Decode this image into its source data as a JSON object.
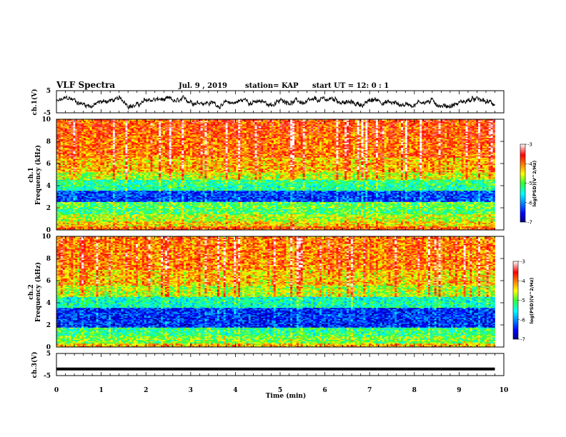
{
  "header": {
    "title": "VLF Spectra",
    "date": "Jul. 9 , 2019",
    "station": "station= KAP",
    "start_ut": "start UT = 12: 0 : 1"
  },
  "chart_data": [
    {
      "type": "line",
      "panel": "ch1-waveform",
      "ylabel": "ch.1(V)",
      "ylim": [
        -5,
        5
      ],
      "y_ticks": [
        "5",
        "-5"
      ],
      "xlim": [
        0,
        10
      ],
      "description_of_trace": "noisy black waveform fluctuating roughly between -3 and +2.5 V",
      "data_end_min": 9.8
    },
    {
      "type": "heatmap",
      "panel": "ch1-spectrogram",
      "ylabel": "ch.1",
      "ylabel2": "Frequency (kHz)",
      "ylim": [
        0,
        10
      ],
      "y_ticks": [
        "0",
        "2",
        "4",
        "6",
        "8",
        "10"
      ],
      "xlim": [
        0,
        10
      ],
      "data_end_min": 9.8,
      "band_levels": [
        {
          "f_kHz": [
            0,
            0.3
          ],
          "level": -3.9
        },
        {
          "f_kHz": [
            0.3,
            0.8
          ],
          "level": -4.4
        },
        {
          "f_kHz": [
            0.8,
            1.4
          ],
          "level": -4.7
        },
        {
          "f_kHz": [
            1.4,
            2.0
          ],
          "level": -5.1
        },
        {
          "f_kHz": [
            2.0,
            2.6
          ],
          "level": -5.0
        },
        {
          "f_kHz": [
            2.6,
            3.5
          ],
          "level": -6.3
        },
        {
          "f_kHz": [
            3.5,
            4.0
          ],
          "level": -5.3
        },
        {
          "f_kHz": [
            4.0,
            4.6
          ],
          "level": -5.2
        },
        {
          "f_kHz": [
            4.6,
            5.2
          ],
          "level": -4.6
        },
        {
          "f_kHz": [
            5.2,
            6.5
          ],
          "level": -4.2
        },
        {
          "f_kHz": [
            6.5,
            8.5
          ],
          "level": -3.9
        },
        {
          "f_kHz": [
            8.5,
            10
          ],
          "level": -3.8
        }
      ],
      "colorbar": {
        "label": "log(PSD)(V^2/Hz)",
        "range": [
          -7,
          -3
        ],
        "ticks": [
          "-3",
          "-4",
          "-5",
          "-6",
          "-7"
        ]
      }
    },
    {
      "type": "heatmap",
      "panel": "ch2-spectrogram",
      "ylabel": "ch.2",
      "ylabel2": "Frequency (kHz)",
      "ylim": [
        0,
        10
      ],
      "y_ticks": [
        "0",
        "2",
        "4",
        "6",
        "8",
        "10"
      ],
      "xlim": [
        0,
        10
      ],
      "data_end_min": 9.8,
      "band_levels": [
        {
          "f_kHz": [
            0,
            0.3
          ],
          "level": -4.3
        },
        {
          "f_kHz": [
            0.3,
            1.0
          ],
          "level": -4.9
        },
        {
          "f_kHz": [
            1.0,
            1.8
          ],
          "level": -5.2
        },
        {
          "f_kHz": [
            1.8,
            3.5
          ],
          "level": -6.4
        },
        {
          "f_kHz": [
            3.5,
            4.5
          ],
          "level": -5.4
        },
        {
          "f_kHz": [
            4.5,
            5.5
          ],
          "level": -4.7
        },
        {
          "f_kHz": [
            5.5,
            7.0
          ],
          "level": -4.3
        },
        {
          "f_kHz": [
            7.0,
            10
          ],
          "level": -4.0
        }
      ],
      "colorbar": {
        "label": "log(PSD)(V^2/Hz)",
        "range": [
          -7,
          -3
        ],
        "ticks": [
          "-3",
          "-4",
          "-5",
          "-6",
          "-7"
        ]
      }
    },
    {
      "type": "line",
      "panel": "ch3-waveform",
      "ylabel": "ch.3(V)",
      "ylim": [
        -5,
        5
      ],
      "y_ticks": [
        "5",
        "-5"
      ],
      "xlim": [
        0,
        10
      ],
      "constant_value": -2,
      "data_end_min": 9.8
    }
  ],
  "xaxis": {
    "label": "Time (min)",
    "ticks": [
      "0",
      "1",
      "2",
      "3",
      "4",
      "5",
      "6",
      "7",
      "8",
      "9",
      "10"
    ]
  },
  "colors": {
    "trace": "#000000",
    "axis": "#000000",
    "background": "#ffffff"
  }
}
